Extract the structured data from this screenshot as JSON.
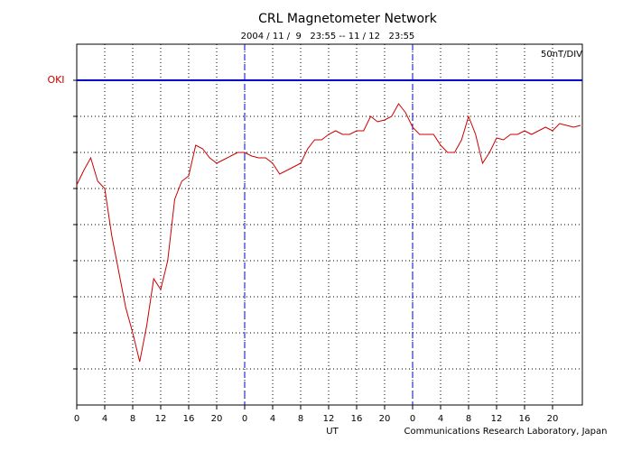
{
  "chart_data": {
    "type": "line",
    "title": "CRL Magnetometer Network",
    "subtitle": "2004 / 11 /  9   23:55 -- 11 / 12   23:55",
    "scale_label": "50nT/DIV",
    "x_label": "UT",
    "credit": "Communications Research Laboratory, Japan",
    "x": [
      0,
      1,
      2,
      3,
      4,
      5,
      6,
      7,
      8,
      9,
      10,
      11,
      12,
      13,
      14,
      15,
      16,
      17,
      18,
      19,
      20,
      21,
      22,
      23,
      24,
      25,
      26,
      27,
      28,
      29,
      30,
      31,
      32,
      33,
      34,
      35,
      36,
      37,
      38,
      39,
      40,
      41,
      42,
      43,
      44,
      45,
      46,
      47,
      48,
      49,
      50,
      51,
      52,
      53,
      54,
      55,
      56,
      57,
      58,
      59,
      60,
      61,
      62,
      63,
      64,
      65,
      66,
      67,
      68,
      69,
      70,
      71,
      72
    ],
    "series": [
      {
        "name": "OKI",
        "color": "#cc0000",
        "axis_color": "#0000cc",
        "baseline": 9,
        "values": [
          6.1,
          6.5,
          6.85,
          6.2,
          6.0,
          4.7,
          3.7,
          2.7,
          2.0,
          1.2,
          2.2,
          3.5,
          3.2,
          4.0,
          5.7,
          6.2,
          6.35,
          7.2,
          7.1,
          6.85,
          6.7,
          6.8,
          6.9,
          7.0,
          7.0,
          6.9,
          6.85,
          6.85,
          6.7,
          6.4,
          6.5,
          6.6,
          6.7,
          7.1,
          7.35,
          7.35,
          7.5,
          7.6,
          7.5,
          7.5,
          7.6,
          7.6,
          8.0,
          7.85,
          7.9,
          8.0,
          8.35,
          8.1,
          7.7,
          7.5,
          7.5,
          7.5,
          7.2,
          7.0,
          7.0,
          7.35,
          8.0,
          7.5,
          6.7,
          7.0,
          7.4,
          7.35,
          7.5,
          7.5,
          7.6,
          7.5,
          7.6,
          7.7,
          7.6,
          7.8,
          7.75,
          7.7,
          7.75
        ]
      }
    ],
    "day_lines": [
      24,
      48
    ],
    "xlim": [
      0,
      72
    ],
    "xticks": [
      0,
      4,
      8,
      12,
      16,
      20,
      {
        "value": 24,
        "label": "0"
      },
      {
        "value": 28,
        "label": "4"
      },
      {
        "value": 32,
        "label": "8"
      },
      {
        "value": 36,
        "label": "12"
      },
      {
        "value": 40,
        "label": "16"
      },
      {
        "value": 44,
        "label": "20"
      },
      {
        "value": 48,
        "label": "0"
      },
      {
        "value": 52,
        "label": "4"
      },
      {
        "value": 56,
        "label": "8"
      },
      {
        "value": 60,
        "label": "12"
      },
      {
        "value": 64,
        "label": "16"
      },
      {
        "value": 68,
        "label": "20"
      }
    ],
    "ylim": [
      0,
      10
    ],
    "yticks": [
      1,
      2,
      3,
      4,
      5,
      6,
      7,
      8,
      9
    ],
    "grid": true
  }
}
